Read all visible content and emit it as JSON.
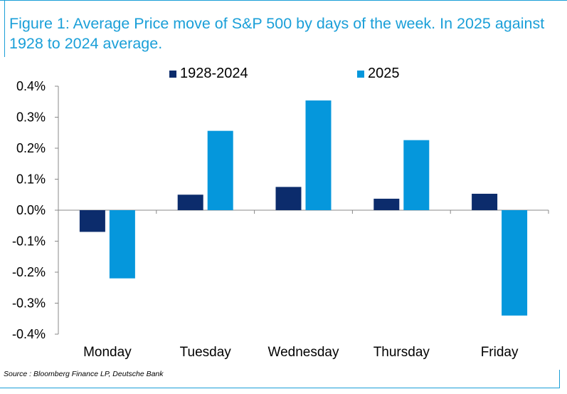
{
  "title": "Figure 1: Average Price move of S&P 500 by days of the week. In 2025 against 1928 to 2024 average.",
  "source": "Source : Bloomberg Finance LP, Deutsche Bank",
  "colors": {
    "accent": "#1a9fd8",
    "series_dark": "#0c2c6c",
    "series_light": "#0597dc"
  },
  "chart_data": {
    "type": "bar",
    "categories": [
      "Monday",
      "Tuesday",
      "Wednesday",
      "Thursday",
      "Friday"
    ],
    "series": [
      {
        "name": "1928-2024",
        "color": "#0c2c6c",
        "values": [
          -0.07,
          0.05,
          0.075,
          0.037,
          0.053
        ]
      },
      {
        "name": "2025",
        "color": "#0597dc",
        "values": [
          -0.22,
          0.256,
          0.354,
          0.226,
          -0.34
        ]
      }
    ],
    "ylim": [
      -0.4,
      0.4
    ],
    "yticks": [
      0.4,
      0.3,
      0.2,
      0.1,
      0.0,
      -0.1,
      -0.2,
      -0.3,
      -0.4
    ],
    "ytick_labels": [
      "0.4%",
      "0.3%",
      "0.2%",
      "0.1%",
      "0.0%",
      "-0.1%",
      "-0.2%",
      "-0.3%",
      "-0.4%"
    ],
    "legend_position": "top-center",
    "grid": false
  }
}
